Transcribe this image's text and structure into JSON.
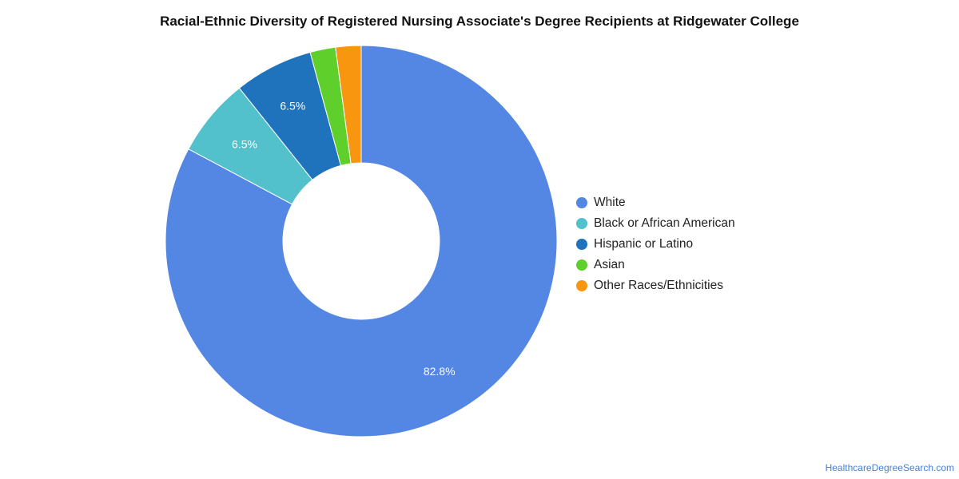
{
  "chart_data": {
    "type": "pie",
    "variant": "donut",
    "title": "Racial-Ethnic Diversity of Registered Nursing Associate's Degree Recipients at Ridgewater College",
    "legend_position": "right",
    "slices": [
      {
        "name": "White",
        "value": 82.8,
        "label": "82.8%",
        "color": "#5486e3"
      },
      {
        "name": "Black or African American",
        "value": 6.5,
        "label": "6.5%",
        "color": "#52c1cc"
      },
      {
        "name": "Hispanic or Latino",
        "value": 6.5,
        "label": "6.5%",
        "color": "#1f73bd"
      },
      {
        "name": "Asian",
        "value": 2.1,
        "label": "",
        "color": "#5fcf2c"
      },
      {
        "name": "Other Races/Ethnicities",
        "value": 2.1,
        "label": "",
        "color": "#f8960f"
      }
    ]
  },
  "source": "HealthcareDegreeSearch.com"
}
